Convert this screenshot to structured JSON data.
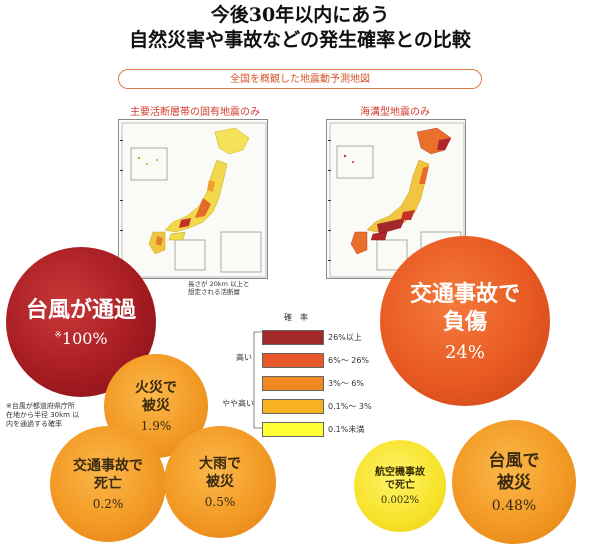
{
  "header": {
    "title_line1": "今後30年以内にあう",
    "title_line2": "自然災害や事故などの発生確率との比較",
    "subtitle_pill": "全国を概観した地震動予測地図"
  },
  "maps": {
    "left_caption": "主要活断層帯の固有地震のみ",
    "right_caption": "海溝型地震のみ",
    "left_note_line1": "長さが 20km 以上と",
    "left_note_line2": "想定される活断層"
  },
  "legend": {
    "title": "確率",
    "side_high": "高い",
    "side_mid": "やや高い",
    "items": [
      {
        "label": "26%以上",
        "color": "#a3282a"
      },
      {
        "label": "6%〜 26%",
        "color": "#e8582a"
      },
      {
        "label": "3%〜 6%",
        "color": "#f08a20"
      },
      {
        "label": "0.1%〜 3%",
        "color": "#f6b21f"
      },
      {
        "label": "0.1%未満",
        "color": "#ffff33"
      }
    ]
  },
  "bubbles": {
    "typhoon_pass": {
      "line1": "台風が通過",
      "value": "100%",
      "mark": "※"
    },
    "traffic_injury": {
      "line1": "交通事故で",
      "line2": "負傷",
      "value": "24%"
    },
    "fire": {
      "line1": "火災で",
      "line2": "被災",
      "value": "1.9%"
    },
    "traffic_death": {
      "line1": "交通事故で",
      "line2": "死亡",
      "value": "0.2%"
    },
    "heavy_rain": {
      "line1": "大雨で",
      "line2": "被災",
      "value": "0.5%"
    },
    "air_accident": {
      "line1": "航空機事故",
      "line2": "で死亡",
      "value": "0.002%"
    },
    "typhoon_damage": {
      "line1": "台風で",
      "line2": "被災",
      "value": "0.48%"
    }
  },
  "footnote": {
    "line1": "※台風が都道府県庁所",
    "line2": "在地から半径 30km 以",
    "line3": "内を通過する確率"
  }
}
